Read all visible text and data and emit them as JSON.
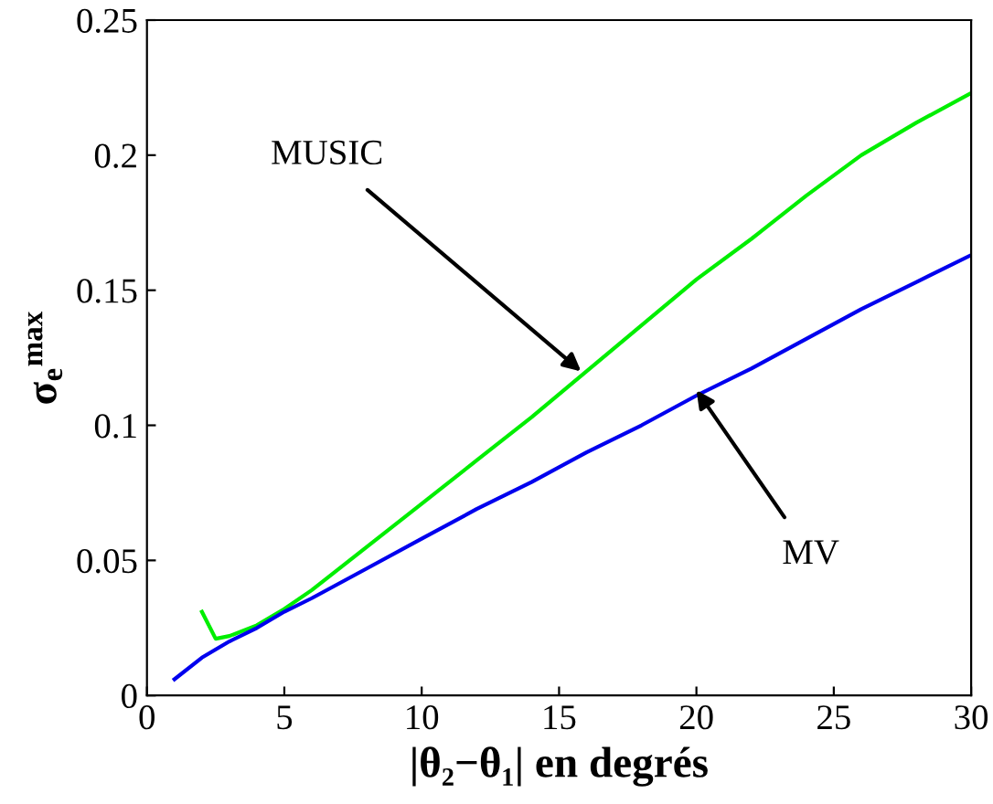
{
  "chart_data": {
    "type": "line",
    "xlabel": "|θ₂−θ₁| en degrés",
    "ylabel": "σ$_{e}$$^{max}$",
    "xlim": [
      0,
      30
    ],
    "ylim": [
      0,
      0.25
    ],
    "xticks": [
      0,
      5,
      10,
      15,
      20,
      25,
      30
    ],
    "yticks": [
      0,
      0.05,
      0.1,
      0.15,
      0.2,
      0.25
    ],
    "grid": false,
    "legend": false,
    "series": [
      {
        "x": [
          2,
          2.5,
          3,
          4,
          5,
          6,
          8,
          10,
          12,
          14,
          16,
          18,
          20,
          22,
          24,
          26,
          28,
          30
        ],
        "color": "#00ee00",
        "values": [
          0.031,
          0.021,
          0.022,
          0.026,
          0.032,
          0.039,
          0.055,
          0.071,
          0.087,
          0.103,
          0.12,
          0.137,
          0.154,
          0.169,
          0.185,
          0.2,
          0.212,
          0.223
        ]
      },
      {
        "x": [
          1,
          2,
          3,
          4,
          5,
          6,
          8,
          10,
          12,
          14,
          16,
          18,
          20,
          22,
          24,
          26,
          28,
          30
        ],
        "color": "#0000ee",
        "values": [
          0.006,
          0.014,
          0.02,
          0.025,
          0.031,
          0.036,
          0.047,
          0.058,
          0.069,
          0.079,
          0.09,
          0.1,
          0.111,
          0.121,
          0.132,
          0.143,
          0.153,
          0.163
        ]
      }
    ],
    "annotations": [
      {
        "text": "MUSIC",
        "x": 15.8,
        "y": 0.12
      },
      {
        "text": "MV",
        "x": 20,
        "y": 0.113
      }
    ]
  }
}
